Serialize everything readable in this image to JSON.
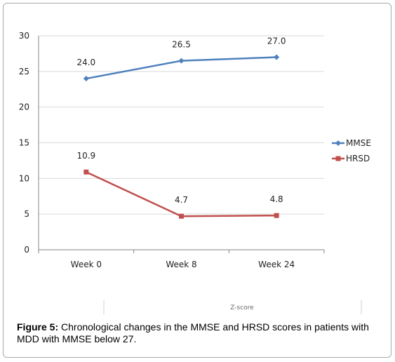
{
  "chart_data": {
    "type": "line",
    "categories": [
      "Week 0",
      "Week 8",
      "Week 24"
    ],
    "series": [
      {
        "name": "MMSE",
        "values": [
          24.0,
          26.5,
          27.0
        ],
        "labels": [
          "24.0",
          "26.5",
          "27.0"
        ],
        "color": "#4f81bd"
      },
      {
        "name": "HRSD",
        "values": [
          10.9,
          4.7,
          4.8
        ],
        "labels": [
          "10.9",
          "4.7",
          "4.8"
        ],
        "color": "#c0504d"
      }
    ],
    "ylim": [
      0,
      30
    ],
    "yticks": [
      "0",
      "5",
      "10",
      "15",
      "20",
      "25",
      "30"
    ],
    "grid": true,
    "legend": "right",
    "footer_label": "Z-score"
  },
  "caption": {
    "label": "Figure 5:",
    "text": " Chronological changes in the MMSE and HRSD scores in patients with MDD with MMSE below 27."
  }
}
